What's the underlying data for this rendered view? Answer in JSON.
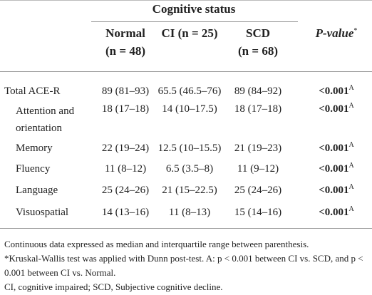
{
  "header": {
    "group": "Cognitive status",
    "columns": [
      {
        "name": "Normal",
        "n": "(n = 48)"
      },
      {
        "name": "CI (n = 25)",
        "n": null
      },
      {
        "name": "SCD",
        "n": "(n = 68)"
      }
    ],
    "p_header": {
      "text": "P-value",
      "sup": "*"
    }
  },
  "table": {
    "rows": [
      {
        "label": "Total ACE-R",
        "indent": false,
        "cells": [
          "89 (81–93)",
          "65.5 (46.5–76)",
          "89 (84–92)"
        ],
        "p": "<0.001",
        "p_sup": "A"
      },
      {
        "label": "Attention and orientation",
        "indent": true,
        "cells": [
          "18 (17–18)",
          "14 (10–17.5)",
          "18 (17–18)"
        ],
        "p": "<0.001",
        "p_sup": "A"
      },
      {
        "label": "Memory",
        "indent": true,
        "cells": [
          "22 (19–24)",
          "12.5 (10–15.5)",
          "21 (19–23)"
        ],
        "p": "<0.001",
        "p_sup": "A"
      },
      {
        "label": "Fluency",
        "indent": true,
        "cells": [
          "11 (8–12)",
          "6.5 (3.5–8)",
          "11 (9–12)"
        ],
        "p": "<0.001",
        "p_sup": "A"
      },
      {
        "label": "Language",
        "indent": true,
        "cells": [
          "25 (24–26)",
          "21 (15–22.5)",
          "25 (24–26)"
        ],
        "p": "<0.001",
        "p_sup": "A"
      },
      {
        "label": "Visuospatial",
        "indent": true,
        "cells": [
          "14 (13–16)",
          "11 (8–13)",
          "15 (14–16)"
        ],
        "p": "<0.001",
        "p_sup": "A"
      }
    ]
  },
  "footnotes": [
    "Continuous data expressed as median and interquartile range between parenthesis.",
    "*Kruskal-Wallis test was applied with Dunn post-test. A: p < 0.001 between CI vs. SCD, and p < 0.001 between CI vs. Normal.",
    "CI, cognitive impaired; SCD, Subjective cognitive decline."
  ]
}
